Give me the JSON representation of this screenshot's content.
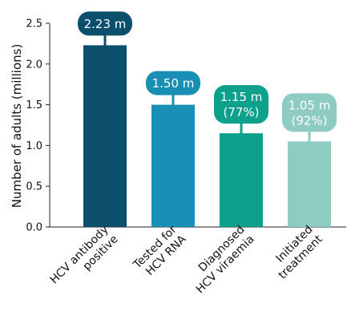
{
  "chart_data": {
    "type": "bar",
    "ylabel": "Number of adults (millions)",
    "ylim": [
      0,
      2.5
    ],
    "yticks": [
      "0.0",
      "0.5",
      "1.0",
      "1.5",
      "2.0",
      "2.5"
    ],
    "categories": [
      [
        "HCV antibody",
        "positive"
      ],
      [
        "Tested for",
        "HCV RNA"
      ],
      [
        "Diagnosed",
        "HCV viraemia"
      ],
      [
        "Initiated",
        "treatment"
      ]
    ],
    "values": [
      2.23,
      1.5,
      1.15,
      1.05
    ],
    "value_labels": [
      [
        "2.23 m"
      ],
      [
        "1.50 m"
      ],
      [
        "1.15 m",
        "(77%)"
      ],
      [
        "1.05 m",
        "(92%)"
      ]
    ],
    "colors": [
      "#0b4f6c",
      "#1a8fb5",
      "#0da08a",
      "#8ecbc0"
    ]
  }
}
